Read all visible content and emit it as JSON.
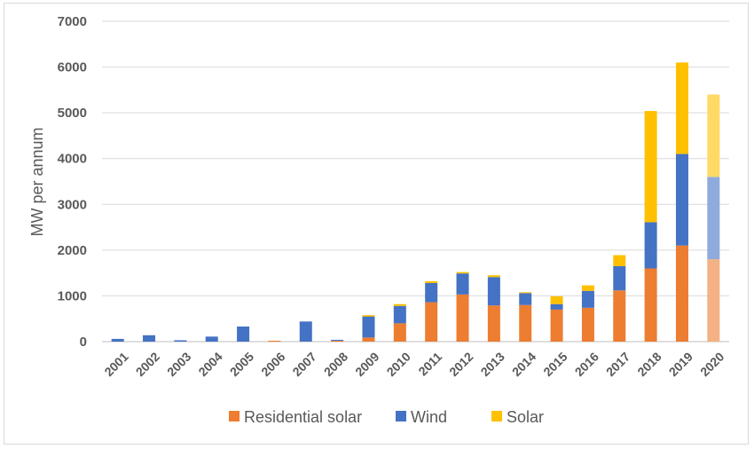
{
  "chart_data": {
    "type": "bar",
    "stacked": true,
    "ylabel": "MW per annum",
    "xlabel": "",
    "ylim": [
      0,
      7000
    ],
    "yticks": [
      "0",
      "1000",
      "2000",
      "3000",
      "4000",
      "5000",
      "6000",
      "7000"
    ],
    "grid": true,
    "legend_position": "bottom",
    "categories": [
      "2001",
      "2002",
      "2003",
      "2004",
      "2005",
      "2006",
      "2007",
      "2008",
      "2009",
      "2010",
      "2011",
      "2012",
      "2013",
      "2014",
      "2015",
      "2016",
      "2017",
      "2018",
      "2019",
      "2020"
    ],
    "series": [
      {
        "name": "Residential solar",
        "color": "#ED7D31",
        "light_color": "#F4B183",
        "values": [
          0,
          0,
          0,
          0,
          0,
          20,
          0,
          20,
          90,
          400,
          860,
          1030,
          790,
          800,
          700,
          740,
          1120,
          1600,
          2100,
          1800
        ]
      },
      {
        "name": "Wind",
        "color": "#4472C4",
        "light_color": "#8FAADC",
        "values": [
          60,
          140,
          30,
          110,
          330,
          0,
          440,
          20,
          460,
          380,
          420,
          460,
          620,
          260,
          120,
          370,
          530,
          1010,
          2000,
          1800
        ]
      },
      {
        "name": "Solar",
        "color": "#FFC000",
        "light_color": "#FFD966",
        "values": [
          0,
          0,
          0,
          0,
          0,
          0,
          0,
          0,
          30,
          40,
          40,
          30,
          40,
          20,
          170,
          120,
          240,
          2430,
          2000,
          1800
        ]
      }
    ],
    "lighter_categories": [
      "2020"
    ]
  }
}
